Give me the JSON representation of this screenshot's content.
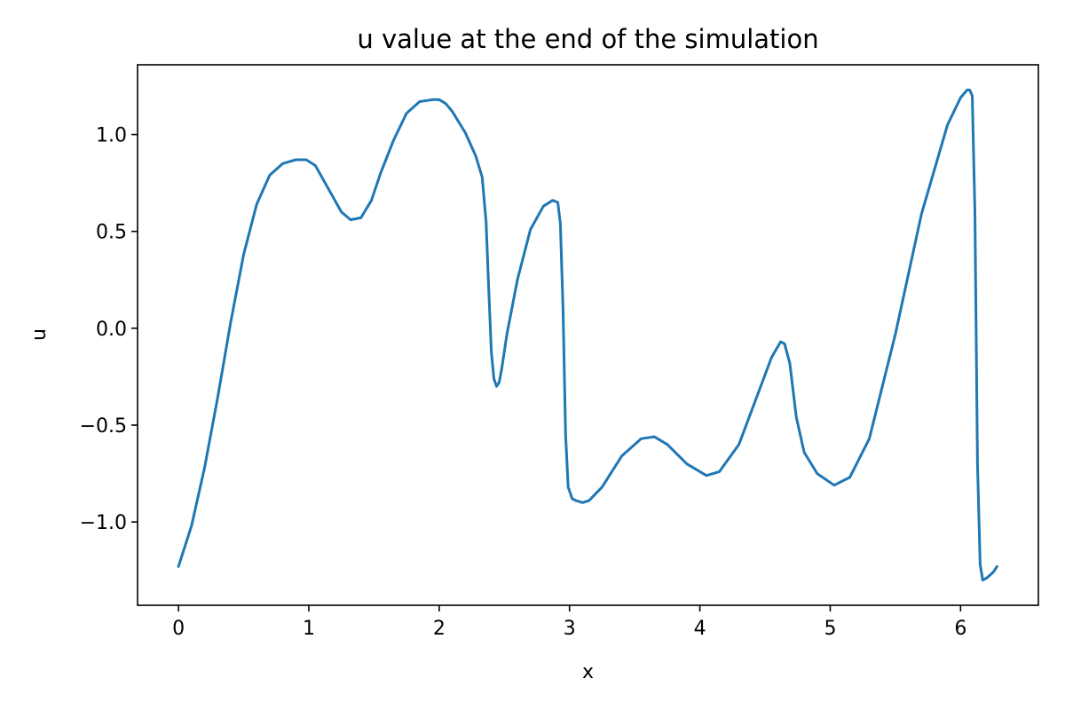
{
  "chart_data": {
    "type": "line",
    "title": "u value at the end of the simulation",
    "xlabel": "x",
    "ylabel": "u",
    "xlim": [
      -0.314,
      6.597
    ],
    "ylim": [
      -1.43,
      1.36
    ],
    "grid": false,
    "x_ticks": [
      0,
      1,
      2,
      3,
      4,
      5,
      6
    ],
    "x_tick_labels": [
      "0",
      "1",
      "2",
      "3",
      "4",
      "5",
      "6"
    ],
    "y_ticks": [
      -1.0,
      -0.5,
      0.0,
      0.5,
      1.0
    ],
    "y_tick_labels": [
      "−1.0",
      "−0.5",
      "0.0",
      "0.5",
      "1.0"
    ],
    "series": [
      {
        "color": "#1f77b4",
        "x": [
          0.0,
          0.1,
          0.2,
          0.3,
          0.4,
          0.5,
          0.6,
          0.7,
          0.8,
          0.9,
          0.98,
          1.05,
          1.15,
          1.25,
          1.32,
          1.4,
          1.48,
          1.55,
          1.65,
          1.75,
          1.85,
          1.95,
          2.0,
          2.05,
          2.1,
          2.2,
          2.28,
          2.33,
          2.36,
          2.38,
          2.4,
          2.42,
          2.44,
          2.46,
          2.48,
          2.52,
          2.6,
          2.7,
          2.8,
          2.87,
          2.91,
          2.93,
          2.95,
          2.97,
          2.99,
          3.02,
          3.05,
          3.1,
          3.15,
          3.25,
          3.4,
          3.55,
          3.65,
          3.75,
          3.9,
          4.05,
          4.15,
          4.3,
          4.45,
          4.55,
          4.62,
          4.65,
          4.69,
          4.74,
          4.8,
          4.9,
          5.03,
          5.15,
          5.3,
          5.5,
          5.7,
          5.9,
          6.0,
          6.05,
          6.07,
          6.09,
          6.11,
          6.13,
          6.15,
          6.17,
          6.2,
          6.25,
          6.28
        ],
        "values": [
          -1.23,
          -1.02,
          -0.72,
          -0.36,
          0.03,
          0.38,
          0.64,
          0.79,
          0.85,
          0.87,
          0.87,
          0.84,
          0.72,
          0.6,
          0.56,
          0.57,
          0.66,
          0.8,
          0.97,
          1.11,
          1.17,
          1.18,
          1.18,
          1.16,
          1.12,
          1.01,
          0.89,
          0.78,
          0.55,
          0.2,
          -0.12,
          -0.26,
          -0.3,
          -0.28,
          -0.21,
          -0.03,
          0.25,
          0.51,
          0.63,
          0.66,
          0.65,
          0.54,
          0.1,
          -0.55,
          -0.82,
          -0.88,
          -0.89,
          -0.9,
          -0.89,
          -0.82,
          -0.66,
          -0.57,
          -0.56,
          -0.6,
          -0.7,
          -0.76,
          -0.74,
          -0.6,
          -0.33,
          -0.15,
          -0.07,
          -0.08,
          -0.18,
          -0.46,
          -0.64,
          -0.75,
          -0.81,
          -0.77,
          -0.57,
          -0.03,
          0.59,
          1.05,
          1.19,
          1.23,
          1.23,
          1.2,
          0.6,
          -0.7,
          -1.22,
          -1.3,
          -1.29,
          -1.26,
          -1.23
        ]
      }
    ]
  }
}
